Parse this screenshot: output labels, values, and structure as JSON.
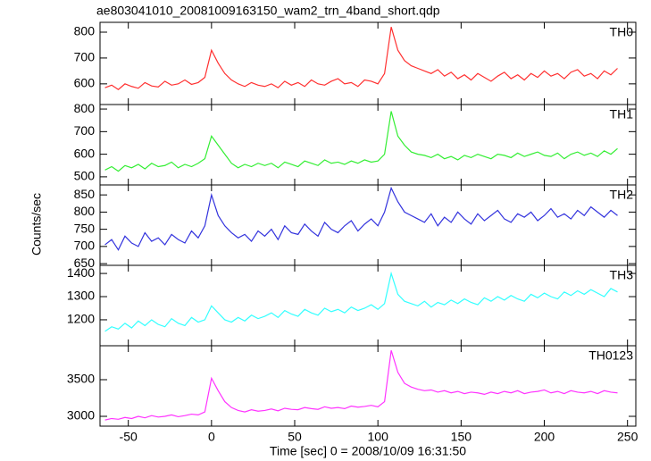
{
  "chart_data": [
    {
      "type": "line",
      "title": "ae803041010_20081009163150_wam2_trn_4band_short.qdp",
      "label": "TH0",
      "color": "#ff3030",
      "xlim": [
        -67,
        255
      ],
      "ylim": [
        520,
        838
      ],
      "yticks": [
        600,
        700,
        800
      ],
      "x": [
        -64,
        -60,
        -56,
        -52,
        -48,
        -44,
        -40,
        -36,
        -32,
        -28,
        -24,
        -20,
        -16,
        -12,
        -8,
        -4,
        0,
        4,
        8,
        12,
        16,
        20,
        24,
        28,
        32,
        36,
        40,
        44,
        48,
        52,
        56,
        60,
        64,
        68,
        72,
        76,
        80,
        84,
        88,
        92,
        96,
        100,
        104,
        108,
        112,
        116,
        120,
        124,
        128,
        132,
        136,
        140,
        144,
        148,
        152,
        156,
        160,
        164,
        168,
        172,
        176,
        180,
        184,
        188,
        192,
        196,
        200,
        204,
        208,
        212,
        216,
        220,
        224,
        228,
        232,
        236,
        240,
        244
      ],
      "values": [
        585,
        595,
        578,
        600,
        590,
        583,
        605,
        592,
        588,
        610,
        595,
        600,
        615,
        598,
        605,
        625,
        730,
        680,
        640,
        615,
        600,
        590,
        605,
        595,
        590,
        600,
        585,
        610,
        595,
        605,
        590,
        615,
        600,
        595,
        610,
        620,
        600,
        605,
        590,
        615,
        610,
        600,
        640,
        820,
        730,
        690,
        670,
        660,
        650,
        640,
        655,
        630,
        645,
        620,
        635,
        615,
        640,
        625,
        610,
        630,
        645,
        620,
        635,
        615,
        640,
        625,
        650,
        630,
        640,
        620,
        645,
        655,
        630,
        640,
        620,
        650,
        635,
        660
      ]
    },
    {
      "type": "line",
      "label": "TH1",
      "color": "#33ee33",
      "xlim": [
        -67,
        255
      ],
      "ylim": [
        464,
        820
      ],
      "yticks": [
        500,
        600,
        700,
        800
      ],
      "x": [
        -64,
        -60,
        -56,
        -52,
        -48,
        -44,
        -40,
        -36,
        -32,
        -28,
        -24,
        -20,
        -16,
        -12,
        -8,
        -4,
        0,
        4,
        8,
        12,
        16,
        20,
        24,
        28,
        32,
        36,
        40,
        44,
        48,
        52,
        56,
        60,
        64,
        68,
        72,
        76,
        80,
        84,
        88,
        92,
        96,
        100,
        104,
        108,
        112,
        116,
        120,
        124,
        128,
        132,
        136,
        140,
        144,
        148,
        152,
        156,
        160,
        164,
        168,
        172,
        176,
        180,
        184,
        188,
        192,
        196,
        200,
        204,
        208,
        212,
        216,
        220,
        224,
        228,
        232,
        236,
        240,
        244
      ],
      "values": [
        530,
        545,
        525,
        550,
        540,
        555,
        535,
        560,
        545,
        550,
        565,
        540,
        555,
        545,
        560,
        580,
        680,
        640,
        600,
        560,
        540,
        555,
        545,
        560,
        550,
        560,
        540,
        565,
        555,
        545,
        570,
        560,
        550,
        575,
        560,
        565,
        555,
        570,
        560,
        575,
        565,
        570,
        600,
        790,
        680,
        640,
        610,
        600,
        595,
        585,
        600,
        580,
        590,
        575,
        595,
        585,
        600,
        590,
        580,
        600,
        595,
        585,
        605,
        590,
        600,
        610,
        595,
        590,
        605,
        580,
        600,
        610,
        595,
        605,
        590,
        615,
        600,
        625
      ]
    },
    {
      "type": "line",
      "label": "TH2",
      "color": "#3333dd",
      "ylabel": "Counts/sec",
      "xlim": [
        -67,
        255
      ],
      "ylim": [
        645,
        879
      ],
      "yticks": [
        650,
        700,
        750,
        800,
        850
      ],
      "x": [
        -64,
        -60,
        -56,
        -52,
        -48,
        -44,
        -40,
        -36,
        -32,
        -28,
        -24,
        -20,
        -16,
        -12,
        -8,
        -4,
        0,
        4,
        8,
        12,
        16,
        20,
        24,
        28,
        32,
        36,
        40,
        44,
        48,
        52,
        56,
        60,
        64,
        68,
        72,
        76,
        80,
        84,
        88,
        92,
        96,
        100,
        104,
        108,
        112,
        116,
        120,
        124,
        128,
        132,
        136,
        140,
        144,
        148,
        152,
        156,
        160,
        164,
        168,
        172,
        176,
        180,
        184,
        188,
        192,
        196,
        200,
        204,
        208,
        212,
        216,
        220,
        224,
        228,
        232,
        236,
        240,
        244
      ],
      "values": [
        705,
        720,
        690,
        730,
        710,
        700,
        740,
        715,
        725,
        705,
        735,
        720,
        710,
        745,
        725,
        760,
        850,
        790,
        760,
        740,
        725,
        735,
        715,
        745,
        730,
        750,
        720,
        760,
        740,
        735,
        765,
        745,
        730,
        770,
        750,
        740,
        760,
        775,
        745,
        765,
        780,
        760,
        800,
        870,
        830,
        800,
        790,
        780,
        770,
        795,
        760,
        785,
        770,
        800,
        780,
        765,
        795,
        775,
        790,
        805,
        780,
        770,
        795,
        785,
        800,
        775,
        790,
        810,
        785,
        795,
        780,
        805,
        790,
        815,
        800,
        785,
        805,
        790
      ]
    },
    {
      "type": "line",
      "label": "TH3",
      "color": "#33ffff",
      "xlim": [
        -67,
        255
      ],
      "ylim": [
        1088,
        1435
      ],
      "yticks": [
        1200,
        1300,
        1400
      ],
      "x": [
        -64,
        -60,
        -56,
        -52,
        -48,
        -44,
        -40,
        -36,
        -32,
        -28,
        -24,
        -20,
        -16,
        -12,
        -8,
        -4,
        0,
        4,
        8,
        12,
        16,
        20,
        24,
        28,
        32,
        36,
        40,
        44,
        48,
        52,
        56,
        60,
        64,
        68,
        72,
        76,
        80,
        84,
        88,
        92,
        96,
        100,
        104,
        108,
        112,
        116,
        120,
        124,
        128,
        132,
        136,
        140,
        144,
        148,
        152,
        156,
        160,
        164,
        168,
        172,
        176,
        180,
        184,
        188,
        192,
        196,
        200,
        204,
        208,
        212,
        216,
        220,
        224,
        228,
        232,
        236,
        240,
        244
      ],
      "values": [
        1150,
        1170,
        1160,
        1185,
        1165,
        1195,
        1175,
        1200,
        1180,
        1170,
        1205,
        1185,
        1175,
        1210,
        1190,
        1200,
        1260,
        1230,
        1200,
        1190,
        1210,
        1195,
        1220,
        1205,
        1215,
        1230,
        1210,
        1240,
        1225,
        1215,
        1245,
        1230,
        1220,
        1250,
        1235,
        1245,
        1230,
        1255,
        1240,
        1250,
        1265,
        1245,
        1270,
        1400,
        1310,
        1280,
        1270,
        1260,
        1280,
        1255,
        1275,
        1265,
        1285,
        1270,
        1290,
        1275,
        1265,
        1295,
        1280,
        1300,
        1285,
        1305,
        1290,
        1280,
        1310,
        1295,
        1315,
        1300,
        1290,
        1320,
        1305,
        1325,
        1310,
        1330,
        1315,
        1300,
        1335,
        1320
      ]
    },
    {
      "type": "line",
      "label": "TH0123",
      "color": "#ff33ff",
      "xlabel": "Time [sec] 0 = 2008/10/09 16:31:50",
      "xlim": [
        -67,
        255
      ],
      "ylim": [
        2866,
        3963
      ],
      "yticks": [
        3000,
        3500
      ],
      "xticks": [
        -50,
        0,
        50,
        100,
        150,
        200,
        250
      ],
      "x": [
        -64,
        -60,
        -56,
        -52,
        -48,
        -44,
        -40,
        -36,
        -32,
        -28,
        -24,
        -20,
        -16,
        -12,
        -8,
        -4,
        0,
        4,
        8,
        12,
        16,
        20,
        24,
        28,
        32,
        36,
        40,
        44,
        48,
        52,
        56,
        60,
        64,
        68,
        72,
        76,
        80,
        84,
        88,
        92,
        96,
        100,
        104,
        108,
        112,
        116,
        120,
        124,
        128,
        132,
        136,
        140,
        144,
        148,
        152,
        156,
        160,
        164,
        168,
        172,
        176,
        180,
        184,
        188,
        192,
        196,
        200,
        204,
        208,
        212,
        216,
        220,
        224,
        228,
        232,
        236,
        240,
        244
      ],
      "values": [
        2950,
        2970,
        2960,
        2985,
        2970,
        3000,
        2980,
        3010,
        2990,
        3000,
        3020,
        2995,
        3010,
        3030,
        3020,
        3060,
        3520,
        3350,
        3200,
        3120,
        3080,
        3060,
        3090,
        3070,
        3080,
        3100,
        3075,
        3110,
        3095,
        3090,
        3120,
        3105,
        3095,
        3130,
        3110,
        3120,
        3105,
        3140,
        3125,
        3135,
        3150,
        3130,
        3200,
        3900,
        3600,
        3450,
        3400,
        3370,
        3350,
        3360,
        3330,
        3350,
        3320,
        3340,
        3310,
        3330,
        3320,
        3300,
        3330,
        3310,
        3340,
        3320,
        3350,
        3310,
        3330,
        3340,
        3360,
        3320,
        3340,
        3310,
        3350,
        3330,
        3320,
        3340,
        3310,
        3350,
        3330,
        3320
      ]
    }
  ]
}
